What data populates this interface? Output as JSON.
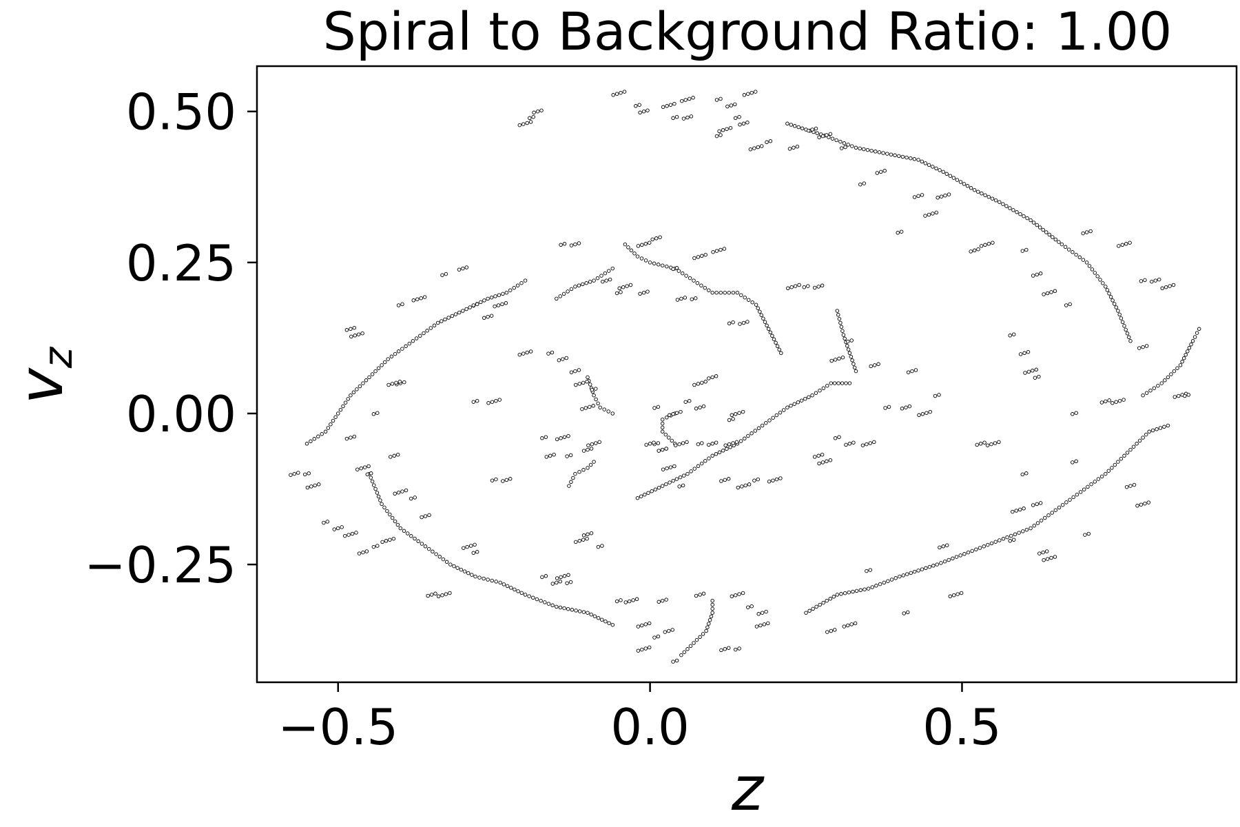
{
  "chart_data": {
    "type": "scatter",
    "title": "Spiral to Background Ratio: 1.00",
    "xlabel": "z",
    "ylabel": "v",
    "ylabel_subscript": "z",
    "xlim": [
      -0.63,
      0.94
    ],
    "ylim": [
      -0.445,
      0.575
    ],
    "xticks": [
      -0.5,
      0.0,
      0.5
    ],
    "xtick_labels": [
      "−0.5",
      "0.0",
      "0.5"
    ],
    "yticks": [
      -0.25,
      0.0,
      0.25,
      0.5
    ],
    "ytick_labels": [
      "−0.25",
      "0.00",
      "0.25",
      "0.50"
    ],
    "grid": false,
    "marker_color": "#000000",
    "marker_fill": "#ffffff",
    "curves": [
      {
        "name": "outer-upper-left",
        "points": [
          [
            -0.55,
            -0.05
          ],
          [
            -0.52,
            -0.03
          ],
          [
            -0.5,
            0.0
          ],
          [
            -0.48,
            0.03
          ],
          [
            -0.45,
            0.06
          ],
          [
            -0.42,
            0.09
          ],
          [
            -0.38,
            0.12
          ],
          [
            -0.34,
            0.15
          ],
          [
            -0.3,
            0.17
          ],
          [
            -0.26,
            0.19
          ],
          [
            -0.23,
            0.2
          ],
          [
            -0.2,
            0.22
          ]
        ]
      },
      {
        "name": "outer-top",
        "points": [
          [
            0.22,
            0.48
          ],
          [
            0.28,
            0.46
          ],
          [
            0.33,
            0.44
          ],
          [
            0.38,
            0.43
          ],
          [
            0.43,
            0.42
          ],
          [
            0.47,
            0.4
          ],
          [
            0.52,
            0.37
          ],
          [
            0.56,
            0.35
          ],
          [
            0.61,
            0.32
          ],
          [
            0.66,
            0.28
          ],
          [
            0.7,
            0.25
          ],
          [
            0.73,
            0.21
          ],
          [
            0.75,
            0.17
          ],
          [
            0.77,
            0.12
          ]
        ]
      },
      {
        "name": "outer-lower-left",
        "points": [
          [
            -0.45,
            -0.1
          ],
          [
            -0.43,
            -0.15
          ],
          [
            -0.4,
            -0.19
          ],
          [
            -0.36,
            -0.22
          ],
          [
            -0.32,
            -0.25
          ],
          [
            -0.28,
            -0.27
          ],
          [
            -0.24,
            -0.28
          ],
          [
            -0.2,
            -0.3
          ],
          [
            -0.15,
            -0.32
          ],
          [
            -0.1,
            -0.33
          ],
          [
            -0.06,
            -0.35
          ]
        ]
      },
      {
        "name": "outer-lower-right",
        "points": [
          [
            0.25,
            -0.33
          ],
          [
            0.3,
            -0.3
          ],
          [
            0.35,
            -0.29
          ],
          [
            0.4,
            -0.27
          ],
          [
            0.46,
            -0.25
          ],
          [
            0.51,
            -0.23
          ],
          [
            0.56,
            -0.21
          ],
          [
            0.61,
            -0.19
          ],
          [
            0.65,
            -0.16
          ],
          [
            0.69,
            -0.13
          ],
          [
            0.73,
            -0.1
          ],
          [
            0.77,
            -0.06
          ],
          [
            0.8,
            -0.03
          ],
          [
            0.83,
            -0.02
          ]
        ]
      },
      {
        "name": "outer-right-tip",
        "points": [
          [
            0.79,
            0.03
          ],
          [
            0.82,
            0.05
          ],
          [
            0.85,
            0.08
          ],
          [
            0.87,
            0.12
          ],
          [
            0.88,
            0.14
          ]
        ]
      },
      {
        "name": "inner-central",
        "points": [
          [
            -0.02,
            -0.14
          ],
          [
            0.02,
            -0.12
          ],
          [
            0.06,
            -0.1
          ],
          [
            0.1,
            -0.07
          ],
          [
            0.14,
            -0.05
          ],
          [
            0.18,
            -0.02
          ],
          [
            0.22,
            0.01
          ],
          [
            0.26,
            0.03
          ],
          [
            0.29,
            0.05
          ],
          [
            0.32,
            0.05
          ]
        ]
      },
      {
        "name": "inner-upper",
        "points": [
          [
            -0.04,
            0.28
          ],
          [
            -0.02,
            0.26
          ],
          [
            0.0,
            0.25
          ],
          [
            0.04,
            0.24
          ],
          [
            0.07,
            0.22
          ],
          [
            0.1,
            0.2
          ],
          [
            0.14,
            0.2
          ],
          [
            0.17,
            0.18
          ],
          [
            0.19,
            0.14
          ],
          [
            0.21,
            0.1
          ]
        ]
      },
      {
        "name": "inner-hook",
        "points": [
          [
            0.04,
            0.0
          ],
          [
            0.02,
            -0.01
          ],
          [
            0.02,
            -0.03
          ],
          [
            0.04,
            -0.05
          ]
        ]
      },
      {
        "name": "left-inner-arc",
        "points": [
          [
            -0.1,
            0.06
          ],
          [
            -0.09,
            0.03
          ],
          [
            -0.08,
            0.01
          ],
          [
            -0.06,
            0.0
          ]
        ]
      },
      {
        "name": "left-inner-lower",
        "points": [
          [
            -0.13,
            -0.12
          ],
          [
            -0.12,
            -0.1
          ],
          [
            -0.1,
            -0.09
          ],
          [
            -0.09,
            -0.08
          ]
        ]
      },
      {
        "name": "bottom-hook",
        "points": [
          [
            0.05,
            -0.4
          ],
          [
            0.07,
            -0.38
          ],
          [
            0.09,
            -0.36
          ],
          [
            0.1,
            -0.33
          ],
          [
            0.1,
            -0.31
          ]
        ]
      },
      {
        "name": "upper-left-arc",
        "points": [
          [
            -0.15,
            0.19
          ],
          [
            -0.12,
            0.21
          ],
          [
            -0.09,
            0.22
          ],
          [
            -0.06,
            0.24
          ]
        ]
      },
      {
        "name": "right-upper-arc",
        "points": [
          [
            0.3,
            0.17
          ],
          [
            0.31,
            0.13
          ],
          [
            0.32,
            0.1
          ],
          [
            0.33,
            0.07
          ]
        ]
      }
    ],
    "clusters": [
      [
        -0.14,
        0.28
      ],
      [
        -0.12,
        0.28
      ],
      [
        0.11,
        0.27
      ],
      [
        -0.33,
        0.23
      ],
      [
        -0.3,
        0.24
      ],
      [
        -0.37,
        0.19
      ],
      [
        -0.4,
        0.18
      ],
      [
        -0.48,
        0.14
      ],
      [
        -0.47,
        0.13
      ],
      [
        0.25,
        0.21
      ],
      [
        0.27,
        0.21
      ],
      [
        0.23,
        0.21
      ],
      [
        0.34,
        0.38
      ],
      [
        0.43,
        0.36
      ],
      [
        0.45,
        0.33
      ],
      [
        0.4,
        0.3
      ],
      [
        0.52,
        0.27
      ],
      [
        0.54,
        0.28
      ],
      [
        0.6,
        0.27
      ],
      [
        0.62,
        0.23
      ],
      [
        0.64,
        0.2
      ],
      [
        0.67,
        0.18
      ],
      [
        0.7,
        0.3
      ],
      [
        0.76,
        0.28
      ],
      [
        0.79,
        0.22
      ],
      [
        0.81,
        0.22
      ],
      [
        0.83,
        0.21
      ],
      [
        0.58,
        0.13
      ],
      [
        0.6,
        0.1
      ],
      [
        0.61,
        0.07
      ],
      [
        0.62,
        0.06
      ],
      [
        0.73,
        0.02
      ],
      [
        0.75,
        0.02
      ],
      [
        0.68,
        0.0
      ],
      [
        0.79,
        0.11
      ],
      [
        0.85,
        0.03
      ],
      [
        0.86,
        0.03
      ],
      [
        0.53,
        -0.05
      ],
      [
        0.55,
        -0.05
      ],
      [
        0.6,
        -0.1
      ],
      [
        0.62,
        -0.15
      ],
      [
        0.59,
        -0.16
      ],
      [
        0.68,
        -0.08
      ],
      [
        0.77,
        -0.12
      ],
      [
        0.79,
        -0.15
      ],
      [
        0.7,
        -0.2
      ],
      [
        0.63,
        -0.23
      ],
      [
        0.64,
        -0.24
      ],
      [
        0.58,
        -0.21
      ],
      [
        0.47,
        -0.22
      ],
      [
        0.49,
        -0.3
      ],
      [
        0.35,
        -0.26
      ],
      [
        0.29,
        -0.36
      ],
      [
        0.32,
        -0.35
      ],
      [
        0.41,
        -0.33
      ],
      [
        0.27,
        -0.07
      ],
      [
        0.28,
        -0.08
      ],
      [
        0.3,
        -0.04
      ],
      [
        0.32,
        -0.05
      ],
      [
        0.35,
        -0.05
      ],
      [
        0.38,
        0.01
      ],
      [
        0.41,
        0.01
      ],
      [
        0.44,
        0.0
      ],
      [
        0.46,
        0.03
      ],
      [
        0.42,
        0.07
      ],
      [
        0.3,
        0.09
      ],
      [
        0.32,
        0.12
      ],
      [
        0.36,
        0.08
      ],
      [
        0.2,
        -0.11
      ],
      [
        0.17,
        -0.11
      ],
      [
        0.12,
        -0.11
      ],
      [
        0.15,
        -0.12
      ],
      [
        0.13,
        0.15
      ],
      [
        0.15,
        0.15
      ],
      [
        0.14,
        0.0
      ],
      [
        0.13,
        -0.01
      ],
      [
        0.1,
        0.06
      ],
      [
        0.08,
        0.05
      ],
      [
        0.06,
        0.02
      ],
      [
        0.08,
        0.01
      ],
      [
        0.04,
        0.0
      ],
      [
        0.01,
        -0.05
      ],
      [
        0.02,
        -0.06
      ],
      [
        0.05,
        -0.05
      ],
      [
        0.08,
        -0.05
      ],
      [
        0.1,
        -0.05
      ],
      [
        0.13,
        -0.05
      ],
      [
        0.07,
        0.19
      ],
      [
        -0.01,
        0.2
      ],
      [
        -0.04,
        0.21
      ],
      [
        -0.05,
        0.2
      ],
      [
        -0.07,
        0.22
      ],
      [
        -0.1,
        0.01
      ],
      [
        -0.09,
        0.04
      ],
      [
        -0.12,
        0.07
      ],
      [
        -0.11,
        0.05
      ],
      [
        -0.16,
        0.1
      ],
      [
        -0.14,
        0.09
      ],
      [
        -0.2,
        0.1
      ],
      [
        -0.17,
        -0.04
      ],
      [
        -0.16,
        -0.07
      ],
      [
        -0.14,
        -0.04
      ],
      [
        -0.13,
        -0.07
      ],
      [
        -0.1,
        -0.06
      ],
      [
        -0.09,
        -0.05
      ],
      [
        -0.25,
        -0.11
      ],
      [
        -0.23,
        -0.11
      ],
      [
        -0.25,
        0.02
      ],
      [
        -0.28,
        0.02
      ],
      [
        -0.26,
        0.16
      ],
      [
        -0.24,
        0.18
      ],
      [
        -0.28,
        0.18
      ],
      [
        -0.4,
        0.05
      ],
      [
        -0.41,
        0.05
      ],
      [
        -0.44,
        0.0
      ],
      [
        -0.48,
        -0.04
      ],
      [
        -0.46,
        -0.09
      ],
      [
        -0.45,
        -0.1
      ],
      [
        -0.41,
        -0.07
      ],
      [
        -0.4,
        -0.13
      ],
      [
        -0.38,
        -0.14
      ],
      [
        -0.36,
        -0.17
      ],
      [
        -0.42,
        -0.21
      ],
      [
        -0.44,
        -0.22
      ],
      [
        -0.46,
        -0.23
      ],
      [
        -0.48,
        -0.2
      ],
      [
        -0.52,
        -0.18
      ],
      [
        -0.5,
        -0.19
      ],
      [
        -0.54,
        -0.12
      ],
      [
        -0.55,
        -0.1
      ],
      [
        -0.57,
        -0.1
      ],
      [
        -0.29,
        -0.22
      ],
      [
        -0.28,
        -0.23
      ],
      [
        -0.35,
        -0.3
      ],
      [
        -0.33,
        -0.3
      ],
      [
        -0.17,
        -0.27
      ],
      [
        -0.15,
        -0.28
      ],
      [
        -0.03,
        -0.31
      ],
      [
        -0.05,
        -0.31
      ],
      [
        0.02,
        -0.31
      ],
      [
        -0.01,
        -0.35
      ],
      [
        0.01,
        -0.37
      ],
      [
        0.03,
        -0.36
      ],
      [
        -0.01,
        -0.39
      ],
      [
        0.04,
        -0.41
      ],
      [
        0.08,
        -0.3
      ],
      [
        0.14,
        -0.3
      ],
      [
        0.16,
        -0.32
      ],
      [
        0.18,
        -0.33
      ],
      [
        0.18,
        -0.35
      ],
      [
        0.14,
        -0.39
      ],
      [
        0.12,
        -0.39
      ],
      [
        -0.2,
        0.48
      ],
      [
        -0.19,
        0.49
      ],
      [
        -0.18,
        0.5
      ],
      [
        -0.05,
        0.53
      ],
      [
        -0.02,
        0.51
      ],
      [
        -0.01,
        0.5
      ],
      [
        0.03,
        0.51
      ],
      [
        0.04,
        0.49
      ],
      [
        0.06,
        0.49
      ],
      [
        0.06,
        0.52
      ],
      [
        0.11,
        0.52
      ],
      [
        0.13,
        0.51
      ],
      [
        0.16,
        0.53
      ],
      [
        0.14,
        0.49
      ],
      [
        0.15,
        0.48
      ],
      [
        0.17,
        0.44
      ],
      [
        0.19,
        0.45
      ],
      [
        0.23,
        0.44
      ],
      [
        0.12,
        0.47
      ],
      [
        0.11,
        0.46
      ],
      [
        0.26,
        0.47
      ],
      [
        0.28,
        0.46
      ],
      [
        0.31,
        0.44
      ],
      [
        0.01,
        0.29
      ],
      [
        -0.01,
        0.28
      ],
      [
        0.04,
        0.24
      ],
      [
        0.05,
        0.19
      ],
      [
        0.08,
        0.26
      ],
      [
        0.01,
        0.01
      ],
      [
        0.0,
        -0.05
      ],
      [
        0.03,
        -0.09
      ],
      [
        0.05,
        -0.12
      ],
      [
        0.02,
        -0.06
      ],
      [
        -0.11,
        -0.21
      ],
      [
        -0.08,
        -0.22
      ],
      [
        -0.1,
        -0.2
      ],
      [
        -0.14,
        -0.27
      ],
      [
        -0.13,
        -0.28
      ],
      [
        0.37,
        0.4
      ],
      [
        0.47,
        0.36
      ]
    ]
  }
}
